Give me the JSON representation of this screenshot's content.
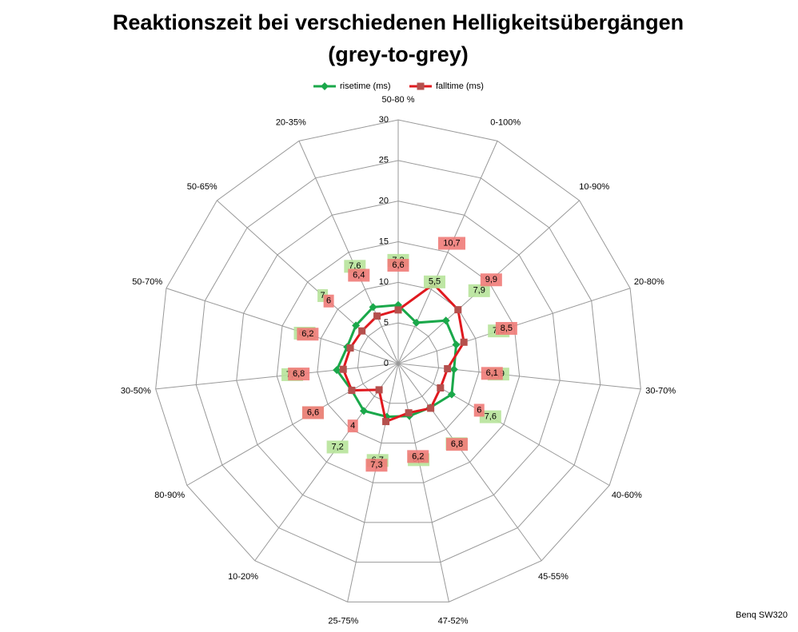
{
  "chart_data": {
    "type": "radar",
    "title": "Reaktionszeit bei verschiedenen Helligkeitsübergängen",
    "subtitle": "(grey-to-grey)",
    "source": "Benq SW320",
    "categories": [
      "50-80 %",
      "0-100%",
      "10-90%",
      "20-80%",
      "30-70%",
      "40-60%",
      "45-55%",
      "47-52%",
      "25-75%",
      "10-20%",
      "80-90%",
      "30-50%",
      "50-70%",
      "50-65%",
      "20-35%"
    ],
    "series": [
      {
        "name": "risetime (ms)",
        "color": "#1aa84a",
        "label_color": "#b7e39a",
        "values": [
          7.2,
          5.5,
          7.9,
          7.5,
          6.9,
          7.6,
          6.7,
          6.6,
          6.7,
          7.2,
          6.6,
          7.6,
          6.6,
          7,
          7.6
        ],
        "value_labels": [
          "7,2",
          "5,5",
          "7,9",
          "7,5",
          "6,9",
          "7,6",
          "6,7",
          "6,6",
          "6,7",
          "7,2",
          "6,6",
          "7,6",
          "6,6",
          "7",
          "7,6"
        ]
      },
      {
        "name": "falltime (ms)",
        "color": "#e0191f",
        "marker_color": "#b5504d",
        "label_color": "#f07b78",
        "values": [
          6.6,
          10.7,
          9.9,
          8.5,
          6.1,
          6,
          6.8,
          6.2,
          7.3,
          4,
          6.6,
          6.8,
          6.2,
          6,
          6.4
        ],
        "value_labels": [
          "6,6",
          "10,7",
          "9,9",
          "8,5",
          "6,1",
          "6",
          "6,8",
          "6,2",
          "7,3",
          "4",
          "6,6",
          "6,8",
          "6,2",
          "6",
          "6,4"
        ]
      }
    ],
    "ylim": [
      0,
      30
    ],
    "yticks": [
      0,
      5,
      10,
      15,
      20,
      25,
      30
    ],
    "grid": true,
    "legend": "top"
  }
}
